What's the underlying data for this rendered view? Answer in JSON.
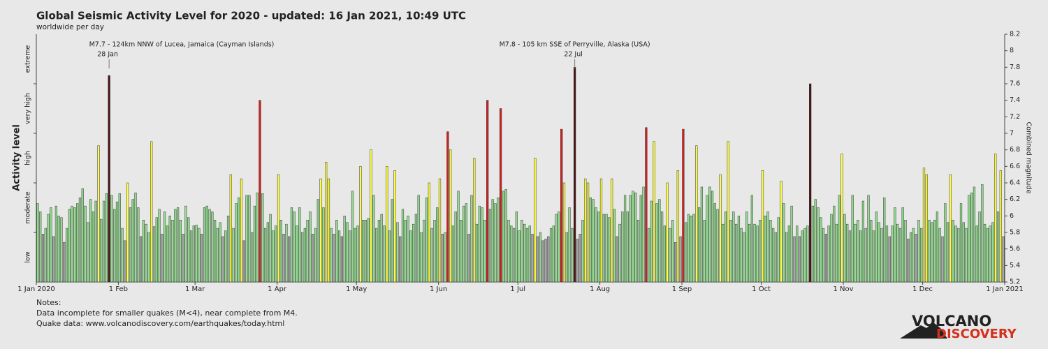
{
  "chart_data": {
    "type": "bar",
    "title": "Global Seismic Activity Level for 2020 - updated: 16 Jan 2021, 10:49 UTC",
    "subtitle": "worldwide per day",
    "y_label": "Activity level",
    "y2_label": "Combined magnitude",
    "xlim": [
      "2020-01-01",
      "2021-01-01"
    ],
    "xticks": [
      {
        "value": "2020-01-01",
        "label": "1 Jan 2020"
      },
      {
        "value": "2020-02-01",
        "label": "1 Feb"
      },
      {
        "value": "2020-03-01",
        "label": "1 Mar"
      },
      {
        "value": "2020-04-01",
        "label": "1 Apr"
      },
      {
        "value": "2020-05-01",
        "label": "1 May"
      },
      {
        "value": "2020-06-01",
        "label": "1 Jun"
      },
      {
        "value": "2020-07-01",
        "label": "1 Jul"
      },
      {
        "value": "2020-08-01",
        "label": "1 Aug"
      },
      {
        "value": "2020-09-01",
        "label": "1 Sep"
      },
      {
        "value": "2020-10-01",
        "label": "1 Oct"
      },
      {
        "value": "2020-11-01",
        "label": "1 Nov"
      },
      {
        "value": "2020-12-01",
        "label": "1 Dec"
      },
      {
        "value": "2021-01-01",
        "label": "1 Jan 2021"
      }
    ],
    "ylim": [
      5.2,
      8.2
    ],
    "yticks": [
      5.2,
      5.4,
      5.6,
      5.8,
      6,
      6.2,
      6.4,
      6.6,
      6.8,
      7,
      7.2,
      7.4,
      7.6,
      7.8,
      8,
      8.2
    ],
    "levels": [
      {
        "name": "low",
        "from": 5.2,
        "to": 5.8,
        "color": "#a6a6a6"
      },
      {
        "name": "moderate",
        "from": 5.8,
        "to": 6.4,
        "color": "#92dc8e"
      },
      {
        "name": "high",
        "from": 6.4,
        "to": 7.0,
        "color": "#ffff3c"
      },
      {
        "name": "very high",
        "from": 7.0,
        "to": 7.6,
        "color": "#d41e1e"
      },
      {
        "name": "extreme",
        "from": 7.6,
        "to": 8.2,
        "color": "#4a1210"
      }
    ],
    "annotations": [
      {
        "text": "M7.7 - 124km NNW of Lucea, Jamaica (Cayman Islands)",
        "date": "2020-01-28",
        "date_label": "28 Jan"
      },
      {
        "text": "M7.8 - 105 km SSE of Perryville, Alaska (USA)",
        "date": "2020-07-22",
        "date_label": "22 Jul"
      }
    ],
    "x": [
      "2020-01-01",
      "2020-01-02",
      "2020-01-03",
      "2020-01-04",
      "2020-01-05",
      "2020-01-06",
      "2020-01-07",
      "2020-01-08",
      "2020-01-09",
      "2020-01-10",
      "2020-01-11",
      "2020-01-12",
      "2020-01-13",
      "2020-01-14",
      "2020-01-15",
      "2020-01-16",
      "2020-01-17",
      "2020-01-18",
      "2020-01-19",
      "2020-01-20",
      "2020-01-21",
      "2020-01-22",
      "2020-01-23",
      "2020-01-24",
      "2020-01-25",
      "2020-01-26",
      "2020-01-27",
      "2020-01-28",
      "2020-01-29",
      "2020-01-30",
      "2020-01-31",
      "2020-02-01",
      "2020-02-02",
      "2020-02-03",
      "2020-02-04",
      "2020-02-05",
      "2020-02-06",
      "2020-02-07",
      "2020-02-08",
      "2020-02-09",
      "2020-02-10",
      "2020-02-11",
      "2020-02-12",
      "2020-02-13",
      "2020-02-14",
      "2020-02-15",
      "2020-02-16",
      "2020-02-17",
      "2020-02-18",
      "2020-02-19",
      "2020-02-20",
      "2020-02-21",
      "2020-02-22",
      "2020-02-23",
      "2020-02-24",
      "2020-02-25",
      "2020-02-26",
      "2020-02-27",
      "2020-02-28",
      "2020-02-29",
      "2020-03-01",
      "2020-03-02",
      "2020-03-03",
      "2020-03-04",
      "2020-03-05",
      "2020-03-06",
      "2020-03-07",
      "2020-03-08",
      "2020-03-09",
      "2020-03-10",
      "2020-03-11",
      "2020-03-12",
      "2020-03-13",
      "2020-03-14",
      "2020-03-15",
      "2020-03-16",
      "2020-03-17",
      "2020-03-18",
      "2020-03-19",
      "2020-03-20",
      "2020-03-21",
      "2020-03-22",
      "2020-03-23",
      "2020-03-24",
      "2020-03-25",
      "2020-03-26",
      "2020-03-27",
      "2020-03-28",
      "2020-03-29",
      "2020-03-30",
      "2020-03-31",
      "2020-04-01",
      "2020-04-02",
      "2020-04-03",
      "2020-04-04",
      "2020-04-05",
      "2020-04-06",
      "2020-04-07",
      "2020-04-08",
      "2020-04-09",
      "2020-04-10",
      "2020-04-11",
      "2020-04-12",
      "2020-04-13",
      "2020-04-14",
      "2020-04-15",
      "2020-04-16",
      "2020-04-17",
      "2020-04-18",
      "2020-04-19",
      "2020-04-20",
      "2020-04-21",
      "2020-04-22",
      "2020-04-23",
      "2020-04-24",
      "2020-04-25",
      "2020-04-26",
      "2020-04-27",
      "2020-04-28",
      "2020-04-29",
      "2020-04-30",
      "2020-05-01",
      "2020-05-02",
      "2020-05-03",
      "2020-05-04",
      "2020-05-05",
      "2020-05-06",
      "2020-05-07",
      "2020-05-08",
      "2020-05-09",
      "2020-05-10",
      "2020-05-11",
      "2020-05-12",
      "2020-05-13",
      "2020-05-14",
      "2020-05-15",
      "2020-05-16",
      "2020-05-17",
      "2020-05-18",
      "2020-05-19",
      "2020-05-20",
      "2020-05-21",
      "2020-05-22",
      "2020-05-23",
      "2020-05-24",
      "2020-05-25",
      "2020-05-26",
      "2020-05-27",
      "2020-05-28",
      "2020-05-29",
      "2020-05-30",
      "2020-05-31",
      "2020-06-01",
      "2020-06-02",
      "2020-06-03",
      "2020-06-04",
      "2020-06-05",
      "2020-06-06",
      "2020-06-07",
      "2020-06-08",
      "2020-06-09",
      "2020-06-10",
      "2020-06-11",
      "2020-06-12",
      "2020-06-13",
      "2020-06-14",
      "2020-06-15",
      "2020-06-16",
      "2020-06-17",
      "2020-06-18",
      "2020-06-19",
      "2020-06-20",
      "2020-06-21",
      "2020-06-22",
      "2020-06-23",
      "2020-06-24",
      "2020-06-25",
      "2020-06-26",
      "2020-06-27",
      "2020-06-28",
      "2020-06-29",
      "2020-06-30",
      "2020-07-01",
      "2020-07-02",
      "2020-07-03",
      "2020-07-04",
      "2020-07-05",
      "2020-07-06",
      "2020-07-07",
      "2020-07-08",
      "2020-07-09",
      "2020-07-10",
      "2020-07-11",
      "2020-07-12",
      "2020-07-13",
      "2020-07-14",
      "2020-07-15",
      "2020-07-16",
      "2020-07-17",
      "2020-07-18",
      "2020-07-19",
      "2020-07-20",
      "2020-07-21",
      "2020-07-22",
      "2020-07-23",
      "2020-07-24",
      "2020-07-25",
      "2020-07-26",
      "2020-07-27",
      "2020-07-28",
      "2020-07-29",
      "2020-07-30",
      "2020-07-31",
      "2020-08-01",
      "2020-08-02",
      "2020-08-03",
      "2020-08-04",
      "2020-08-05",
      "2020-08-06",
      "2020-08-07",
      "2020-08-08",
      "2020-08-09",
      "2020-08-10",
      "2020-08-11",
      "2020-08-12",
      "2020-08-13",
      "2020-08-14",
      "2020-08-15",
      "2020-08-16",
      "2020-08-17",
      "2020-08-18",
      "2020-08-19",
      "2020-08-20",
      "2020-08-21",
      "2020-08-22",
      "2020-08-23",
      "2020-08-24",
      "2020-08-25",
      "2020-08-26",
      "2020-08-27",
      "2020-08-28",
      "2020-08-29",
      "2020-08-30",
      "2020-08-31",
      "2020-09-01",
      "2020-09-02",
      "2020-09-03",
      "2020-09-04",
      "2020-09-05",
      "2020-09-06",
      "2020-09-07",
      "2020-09-08",
      "2020-09-09",
      "2020-09-10",
      "2020-09-11",
      "2020-09-12",
      "2020-09-13",
      "2020-09-14",
      "2020-09-15",
      "2020-09-16",
      "2020-09-17",
      "2020-09-18",
      "2020-09-19",
      "2020-09-20",
      "2020-09-21",
      "2020-09-22",
      "2020-09-23",
      "2020-09-24",
      "2020-09-25",
      "2020-09-26",
      "2020-09-27",
      "2020-09-28",
      "2020-09-29",
      "2020-09-30",
      "2020-10-01",
      "2020-10-02",
      "2020-10-03",
      "2020-10-04",
      "2020-10-05",
      "2020-10-06",
      "2020-10-07",
      "2020-10-08",
      "2020-10-09",
      "2020-10-10",
      "2020-10-11",
      "2020-10-12",
      "2020-10-13",
      "2020-10-14",
      "2020-10-15",
      "2020-10-16",
      "2020-10-17",
      "2020-10-18",
      "2020-10-19",
      "2020-10-20",
      "2020-10-21",
      "2020-10-22",
      "2020-10-23",
      "2020-10-24",
      "2020-10-25",
      "2020-10-26",
      "2020-10-27",
      "2020-10-28",
      "2020-10-29",
      "2020-10-30",
      "2020-10-31",
      "2020-11-01",
      "2020-11-02",
      "2020-11-03",
      "2020-11-04",
      "2020-11-05",
      "2020-11-06",
      "2020-11-07",
      "2020-11-08",
      "2020-11-09",
      "2020-11-10",
      "2020-11-11",
      "2020-11-12",
      "2020-11-13",
      "2020-11-14",
      "2020-11-15",
      "2020-11-16",
      "2020-11-17",
      "2020-11-18",
      "2020-11-19",
      "2020-11-20",
      "2020-11-21",
      "2020-11-22",
      "2020-11-23",
      "2020-11-24",
      "2020-11-25",
      "2020-11-26",
      "2020-11-27",
      "2020-11-28",
      "2020-11-29",
      "2020-11-30",
      "2020-12-01",
      "2020-12-02",
      "2020-12-03",
      "2020-12-04",
      "2020-12-05",
      "2020-12-06",
      "2020-12-07",
      "2020-12-08",
      "2020-12-09",
      "2020-12-10",
      "2020-12-11",
      "2020-12-12",
      "2020-12-13",
      "2020-12-14",
      "2020-12-15",
      "2020-12-16",
      "2020-12-17",
      "2020-12-18",
      "2020-12-19",
      "2020-12-20",
      "2020-12-21",
      "2020-12-22",
      "2020-12-23",
      "2020-12-24",
      "2020-12-25",
      "2020-12-26",
      "2020-12-27",
      "2020-12-28",
      "2020-12-29",
      "2020-12-30",
      "2020-12-31"
    ],
    "values": [
      6.15,
      6.05,
      5.78,
      5.85,
      6.02,
      6.1,
      5.75,
      6.12,
      6.0,
      5.98,
      5.68,
      5.85,
      6.08,
      6.12,
      6.1,
      6.15,
      6.22,
      6.33,
      6.12,
      5.92,
      6.2,
      6.05,
      6.18,
      6.85,
      5.96,
      6.18,
      6.27,
      7.7,
      6.25,
      6.08,
      6.17,
      6.27,
      5.85,
      5.7,
      6.4,
      6.1,
      6.2,
      6.28,
      6.1,
      5.75,
      5.95,
      5.9,
      5.8,
      6.9,
      5.87,
      5.98,
      6.08,
      5.78,
      6.05,
      5.88,
      6.0,
      5.95,
      6.08,
      6.1,
      5.95,
      5.78,
      6.12,
      5.98,
      5.82,
      5.88,
      5.89,
      5.85,
      5.78,
      6.1,
      6.12,
      6.08,
      6.05,
      5.95,
      5.85,
      5.92,
      5.75,
      5.82,
      6.0,
      6.5,
      5.85,
      6.15,
      6.22,
      6.45,
      5.7,
      6.25,
      6.25,
      5.8,
      6.12,
      6.28,
      7.4,
      6.27,
      5.85,
      5.92,
      6.02,
      5.82,
      5.88,
      6.5,
      5.95,
      5.78,
      5.9,
      5.75,
      6.1,
      6.05,
      5.88,
      6.1,
      5.8,
      5.85,
      5.95,
      6.05,
      5.78,
      5.85,
      6.2,
      6.45,
      6.1,
      6.65,
      6.45,
      5.85,
      5.78,
      5.95,
      5.82,
      5.75,
      6.0,
      5.92,
      5.82,
      6.3,
      5.85,
      5.88,
      6.6,
      5.95,
      5.95,
      5.97,
      6.8,
      6.25,
      5.85,
      5.95,
      6.02,
      5.88,
      6.6,
      5.82,
      6.2,
      6.55,
      5.92,
      5.75,
      6.08,
      5.95,
      6.0,
      5.82,
      5.9,
      6.02,
      6.25,
      5.8,
      5.95,
      6.22,
      6.4,
      5.85,
      5.95,
      6.1,
      6.45,
      5.78,
      5.8,
      7.02,
      6.8,
      5.88,
      6.05,
      6.3,
      5.95,
      6.12,
      6.15,
      5.78,
      6.25,
      6.7,
      5.9,
      6.12,
      6.1,
      5.95,
      7.4,
      6.08,
      6.2,
      6.15,
      6.22,
      7.3,
      6.3,
      6.32,
      5.95,
      5.88,
      5.85,
      6.05,
      5.82,
      5.95,
      5.9,
      5.85,
      5.88,
      5.78,
      6.7,
      5.75,
      5.8,
      5.7,
      5.72,
      5.75,
      5.85,
      5.88,
      6.02,
      6.05,
      7.05,
      6.4,
      5.8,
      6.1,
      5.85,
      7.8,
      5.72,
      5.78,
      5.95,
      6.45,
      6.4,
      6.22,
      6.2,
      6.1,
      6.05,
      6.45,
      6.02,
      6.02,
      5.98,
      6.45,
      6.08,
      5.75,
      5.9,
      6.05,
      6.25,
      6.05,
      6.25,
      6.3,
      6.28,
      5.95,
      6.25,
      6.35,
      7.07,
      5.85,
      6.18,
      6.9,
      6.15,
      6.2,
      6.05,
      5.88,
      6.4,
      5.85,
      5.95,
      5.68,
      6.55,
      5.75,
      7.05,
      5.92,
      6.02,
      6.0,
      6.02,
      6.85,
      6.1,
      6.35,
      5.95,
      6.25,
      6.35,
      6.3,
      6.15,
      6.08,
      6.5,
      5.9,
      6.05,
      6.9,
      5.95,
      6.05,
      5.9,
      6.0,
      5.85,
      5.8,
      6.05,
      5.9,
      6.25,
      5.9,
      5.88,
      5.95,
      6.55,
      6.0,
      6.05,
      5.95,
      5.85,
      5.8,
      5.98,
      6.42,
      6.15,
      5.8,
      5.88,
      6.12,
      5.75,
      5.88,
      5.75,
      5.82,
      5.85,
      5.88,
      7.6,
      6.12,
      6.2,
      6.1,
      5.98,
      5.85,
      5.78,
      5.88,
      6.02,
      6.12,
      5.9,
      6.25,
      6.75,
      6.02,
      5.9,
      5.82,
      6.25,
      5.9,
      5.95,
      5.82,
      6.18,
      5.85,
      6.25,
      5.95,
      5.82,
      6.05,
      5.92,
      5.85,
      6.22,
      5.88,
      5.75,
      5.88,
      6.1,
      5.9,
      5.85,
      6.1,
      5.95,
      5.72,
      5.8,
      5.85,
      5.78,
      5.95,
      5.85,
      6.58,
      6.5,
      5.95,
      5.92,
      5.95,
      6.05,
      5.85,
      5.75,
      6.15,
      5.92,
      6.5,
      5.95,
      5.88,
      5.85,
      6.15,
      5.92,
      5.85,
      6.25,
      6.28,
      6.35,
      5.88,
      6.05,
      6.38,
      5.9,
      5.85,
      5.88,
      5.92,
      6.75,
      6.05,
      6.55,
      5.75
    ]
  },
  "notes": [
    "Notes:",
    "Data incomplete for smaller quakes (M<4), near complete from M4.",
    "Quake data: www.volcanodiscovery.com/earthquakes/today.html"
  ],
  "logo": {
    "line1": "VOLCANO",
    "line2": "DISCOVERY"
  }
}
